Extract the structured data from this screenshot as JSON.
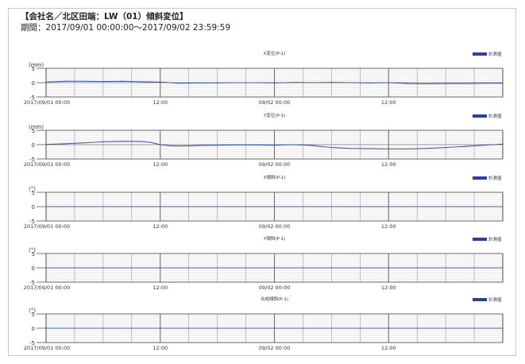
{
  "header": {
    "title": "【会社名／北区田端：LW（01）傾斜変位】",
    "period": "期間：2017/09/01 00:00:00〜2017/09/02 23:59:59"
  },
  "colors": {
    "series": "#3b4fa8",
    "legend_swatch": "#2a3fa0",
    "grid_major": "#707070",
    "grid_minor": "#c8c8c8",
    "plot_border": "#555555"
  },
  "chart_data": [
    {
      "type": "line",
      "title": "X変位(P-1)",
      "unit": "(mm)",
      "yticks": [
        "5",
        "0",
        "-5"
      ],
      "ylim": [
        -5,
        5
      ],
      "xticks": [
        "2017/09/01 00:00",
        "12:00",
        "09/02 00:00",
        "12:00"
      ],
      "xlim": [
        0,
        48
      ],
      "grid": true,
      "legend": "top-right",
      "series": [
        {
          "name": "計測値",
          "x": [
            0,
            2,
            4,
            6,
            8,
            10,
            12,
            14,
            16,
            18,
            20,
            22,
            24,
            26,
            28,
            30,
            32,
            34,
            36,
            38,
            40,
            42,
            44,
            46,
            48
          ],
          "y": [
            0.2,
            0.5,
            0.5,
            0.4,
            0.5,
            0.3,
            0.2,
            -0.2,
            -0.1,
            -0.1,
            0.0,
            0.0,
            -0.1,
            0.1,
            0.0,
            0.1,
            0.0,
            -0.1,
            0.0,
            -0.3,
            -0.4,
            -0.3,
            -0.3,
            -0.2,
            -0.2
          ]
        }
      ]
    },
    {
      "type": "line",
      "title": "Y変位(P-1)",
      "unit": "(mm)",
      "yticks": [
        "5",
        "0",
        "-5"
      ],
      "ylim": [
        -5,
        5
      ],
      "xticks": [
        "2017/09/01 00:00",
        "12:00",
        "09/02 00:00",
        "12:00"
      ],
      "xlim": [
        0,
        48
      ],
      "grid": true,
      "legend": "top-right",
      "series": [
        {
          "name": "計測値",
          "x": [
            0,
            2,
            4,
            6,
            8,
            10,
            11,
            12,
            13,
            14,
            16,
            18,
            20,
            22,
            24,
            26,
            28,
            30,
            32,
            34,
            36,
            38,
            40,
            42,
            44,
            46,
            48
          ],
          "y": [
            0.1,
            0.3,
            0.6,
            1.0,
            1.2,
            1.1,
            0.8,
            0.0,
            -0.4,
            -0.5,
            -0.3,
            -0.2,
            -0.1,
            -0.1,
            -0.2,
            0.0,
            -0.3,
            -1.0,
            -1.3,
            -1.4,
            -1.5,
            -1.5,
            -1.3,
            -1.0,
            -0.6,
            -0.2,
            0.2
          ]
        }
      ]
    },
    {
      "type": "line",
      "title": "X傾斜(P-1)",
      "unit": "(°)",
      "yticks": [
        "5",
        "0",
        "-5"
      ],
      "ylim": [
        -5,
        5
      ],
      "xticks": [
        "2017/09/01 00:00",
        "12:00",
        "09/02 00:00",
        "12:00"
      ],
      "xlim": [
        0,
        48
      ],
      "grid": true,
      "legend": "top-right",
      "series": [
        {
          "name": "計測値",
          "x": [
            0,
            48
          ],
          "y": [
            0,
            0
          ]
        }
      ]
    },
    {
      "type": "line",
      "title": "Y傾斜(P-1)",
      "unit": "(°)",
      "yticks": [
        "5",
        "0",
        "-5"
      ],
      "ylim": [
        -5,
        5
      ],
      "xticks": [
        "2017/09/01 00:00",
        "12:00",
        "09/02 00:00",
        "12:00"
      ],
      "xlim": [
        0,
        48
      ],
      "grid": true,
      "legend": "top-right",
      "series": [
        {
          "name": "計測値",
          "x": [
            0,
            48
          ],
          "y": [
            0,
            0
          ]
        }
      ]
    },
    {
      "type": "line",
      "title": "合成傾斜(P-1)",
      "unit": "(°)",
      "yticks": [
        "5",
        "0",
        "-5"
      ],
      "ylim": [
        -5,
        5
      ],
      "xticks": [
        "2017/09/01 00:00",
        "12:00",
        "09/02 00:00",
        "12:00"
      ],
      "xlim": [
        0,
        48
      ],
      "grid": true,
      "legend": "top-right",
      "series": [
        {
          "name": "計測値",
          "x": [
            0,
            48
          ],
          "y": [
            0,
            0
          ]
        }
      ]
    }
  ]
}
